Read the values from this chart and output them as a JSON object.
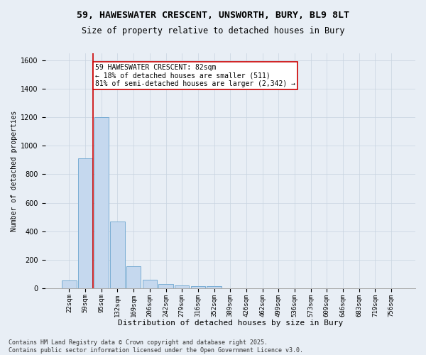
{
  "title_line1": "59, HAWESWATER CRESCENT, UNSWORTH, BURY, BL9 8LT",
  "title_line2": "Size of property relative to detached houses in Bury",
  "xlabel": "Distribution of detached houses by size in Bury",
  "ylabel": "Number of detached properties",
  "bar_color": "#c5d8ee",
  "bar_edge_color": "#7aadd4",
  "grid_color": "#c8d4e0",
  "background_color": "#e8eef5",
  "categories": [
    "22sqm",
    "59sqm",
    "95sqm",
    "132sqm",
    "169sqm",
    "206sqm",
    "242sqm",
    "279sqm",
    "316sqm",
    "352sqm",
    "389sqm",
    "426sqm",
    "462sqm",
    "499sqm",
    "536sqm",
    "573sqm",
    "609sqm",
    "646sqm",
    "683sqm",
    "719sqm",
    "756sqm"
  ],
  "values": [
    55,
    910,
    1200,
    470,
    155,
    60,
    30,
    20,
    15,
    15,
    0,
    0,
    0,
    0,
    0,
    0,
    0,
    0,
    0,
    0,
    0
  ],
  "ylim": [
    0,
    1650
  ],
  "yticks": [
    0,
    200,
    400,
    600,
    800,
    1000,
    1200,
    1400,
    1600
  ],
  "property_line_x": 1.5,
  "annotation_title": "59 HAWESWATER CRESCENT: 82sqm",
  "annotation_line1": "← 18% of detached houses are smaller (511)",
  "annotation_line2": "81% of semi-detached houses are larger (2,342) →",
  "annotation_box_color": "#ffffff",
  "annotation_box_edge": "#cc0000",
  "vline_color": "#cc0000",
  "footer_line1": "Contains HM Land Registry data © Crown copyright and database right 2025.",
  "footer_line2": "Contains public sector information licensed under the Open Government Licence v3.0.",
  "title_fontsize": 9.5,
  "subtitle_fontsize": 8.5,
  "tick_fontsize": 6.5,
  "ylabel_fontsize": 7,
  "xlabel_fontsize": 8,
  "annotation_fontsize": 7,
  "footer_fontsize": 6
}
